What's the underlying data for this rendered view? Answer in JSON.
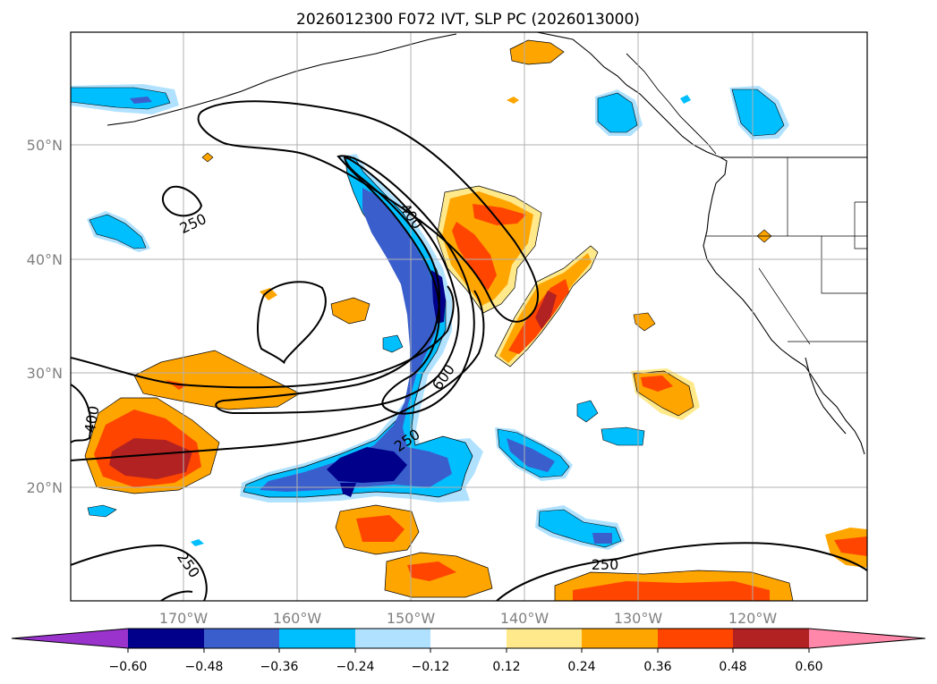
{
  "title": "2026012300 F072 IVT, SLP PC (2026013000)",
  "map": {
    "lat_labels": [
      "50°N",
      "40°N",
      "30°N",
      "20°N"
    ],
    "lon_labels": [
      "170°W",
      "160°W",
      "150°W",
      "140°W",
      "130°W",
      "120°W"
    ]
  },
  "contours": {
    "labels": [
      "250",
      "400",
      "600",
      "250",
      "400",
      "250",
      "250"
    ]
  },
  "colorbar": {
    "ticks": [
      "−0.60",
      "−0.48",
      "−0.36",
      "−0.24",
      "−0.12",
      "0.12",
      "0.24",
      "0.36",
      "0.48",
      "0.60"
    ],
    "colors": [
      "#9933cc",
      "#00008b",
      "#3a5fcd",
      "#00bfff",
      "#b0e2ff",
      "#ffffff",
      "#ffe98a",
      "#ffa500",
      "#ff4500",
      "#b22222",
      "#ff88aa"
    ]
  },
  "colors": {
    "grid": "#b0b0b0",
    "coast": "#000000"
  }
}
